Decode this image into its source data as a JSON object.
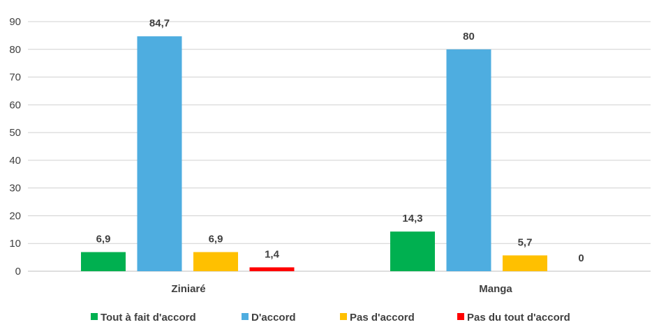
{
  "chart_data": {
    "type": "bar",
    "categories": [
      "Ziniaré",
      "Manga"
    ],
    "series": [
      {
        "name": "Tout à fait d'accord",
        "values": [
          6.9,
          14.3
        ],
        "labels": [
          "6,9",
          "14,3"
        ],
        "color": "#00B050"
      },
      {
        "name": "D'accord",
        "values": [
          84.7,
          80
        ],
        "labels": [
          "84,7",
          "80"
        ],
        "color": "#4EADE0"
      },
      {
        "name": "Pas d'accord",
        "values": [
          6.9,
          5.7
        ],
        "labels": [
          "6,9",
          "5,7"
        ],
        "color": "#FFC000"
      },
      {
        "name": "Pas du tout d'accord",
        "values": [
          1.4,
          0
        ],
        "labels": [
          "1,4",
          "0"
        ],
        "color": "#FF0000"
      }
    ],
    "ylim": [
      0,
      90
    ],
    "yticks": [
      "0",
      "10",
      "20",
      "30",
      "40",
      "50",
      "60",
      "70",
      "80",
      "90"
    ],
    "grid": true,
    "legend_position": "bottom"
  }
}
